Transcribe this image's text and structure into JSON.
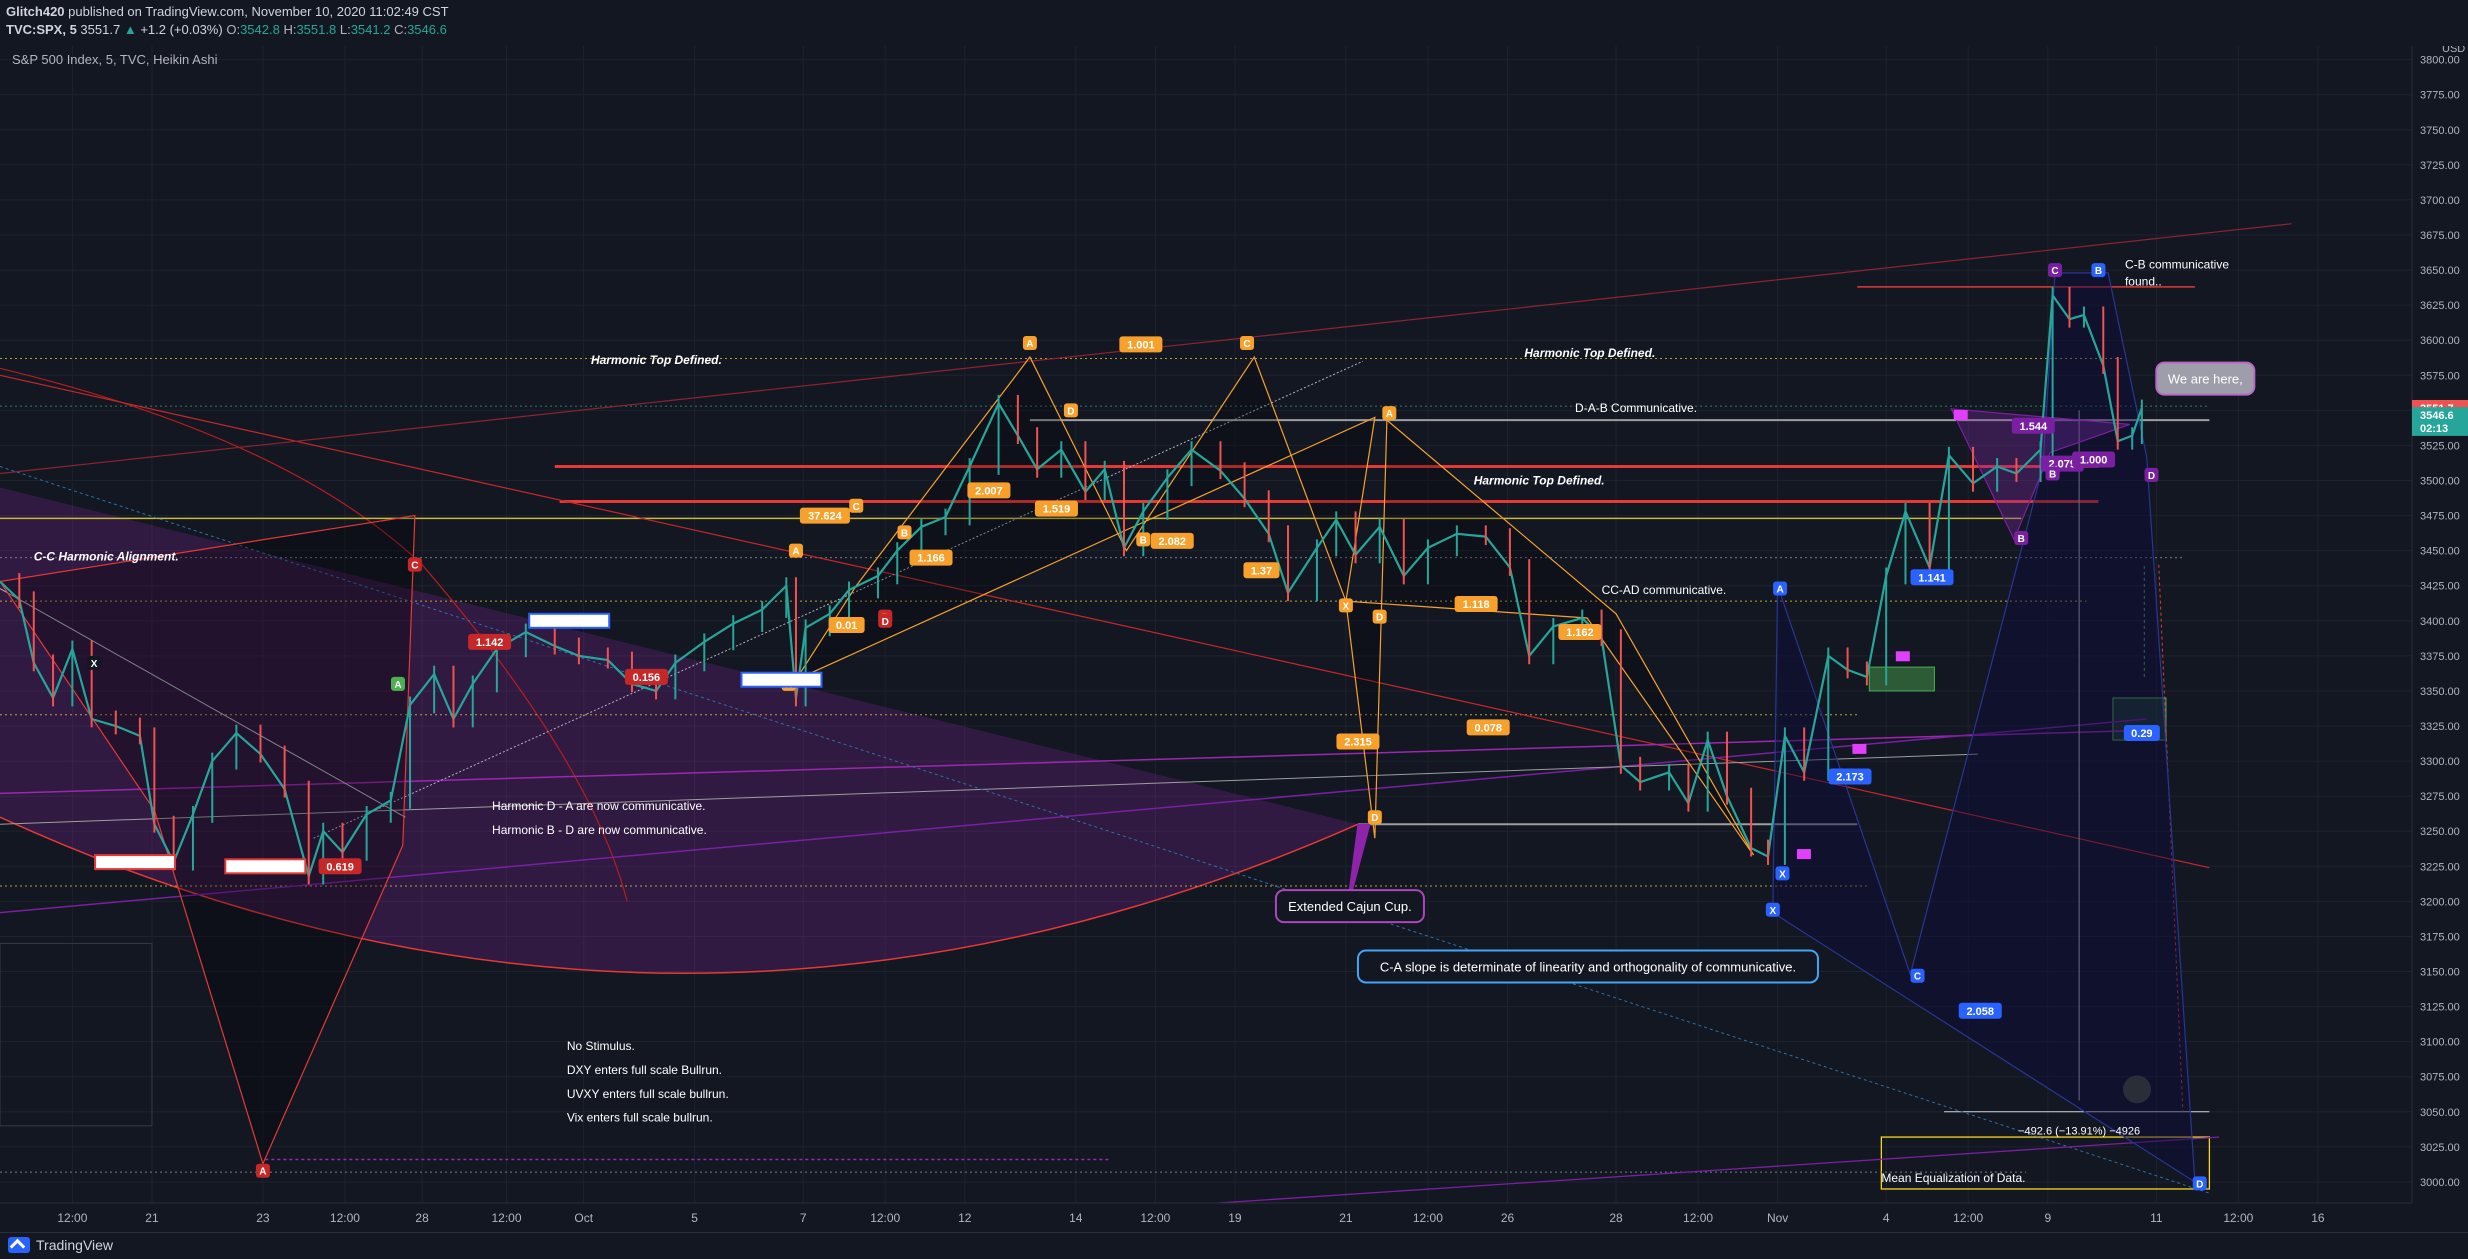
{
  "header": {
    "publisher": "Glitch420",
    "published_text": "published on TradingView.com, November 10, 2020 11:02:49 CST",
    "symbol": "TVC:SPX, 5",
    "last": "3551.7",
    "change_arrow": "▲",
    "change": "+1.2 (+0.03%)",
    "o_label": "O:",
    "o": "3542.8",
    "h_label": "H:",
    "h": "3551.8",
    "l_label": "L:",
    "l": "3541.2",
    "c_label": "C:",
    "c": "3546.6"
  },
  "chart_title": "S&P 500 Index, 5, TVC, Heikin Ashi",
  "footer": {
    "brand": "TradingView"
  },
  "colors": {
    "background": "#131722",
    "up": "#26a69a",
    "down": "#ef5350",
    "purple": "#9c27b0",
    "orange": "#f7a12c",
    "red_line": "#e53935",
    "blue_pattern": "#1e2f9e"
  },
  "chart_data": {
    "type": "line",
    "style": "Heikin Ashi candles, 5 min",
    "yaxis": {
      "unit": "USD",
      "ticks": [
        3800,
        3775,
        3750,
        3725,
        3700,
        3675,
        3650,
        3625,
        3600,
        3575,
        3550,
        3525,
        3500,
        3475,
        3450,
        3425,
        3400,
        3375,
        3350,
        3325,
        3300,
        3275,
        3250,
        3225,
        3200,
        3175,
        3150,
        3125,
        3100,
        3075,
        3050,
        3025,
        3000
      ],
      "tick_labels": [
        "3800.00",
        "3775.00",
        "3750.00",
        "3725.00",
        "3700.00",
        "3675.00",
        "3650.00",
        "3625.00",
        "3600.00",
        "3575.00",
        "3550.00",
        "3525.00",
        "3500.00",
        "3475.00",
        "3450.00",
        "3425.00",
        "3400.00",
        "3375.00",
        "3350.00",
        "3325.00",
        "3300.00",
        "3275.00",
        "3250.00",
        "3225.00",
        "3200.00",
        "3175.00",
        "3150.00",
        "3125.00",
        "3100.00",
        "3075.00",
        "3050.00",
        "3025.00",
        "3000.00"
      ],
      "range": [
        2985,
        3814
      ],
      "price_tags": [
        {
          "value": 3551.7,
          "label": "3551.7",
          "color": "#ef5350"
        },
        {
          "value": 3546.6,
          "label": "3546.6",
          "color": "#26a69a"
        },
        {
          "value": 3537.5,
          "label": "02:13",
          "color": "#26a69a"
        }
      ]
    },
    "xaxis": {
      "range": [
        0,
        1000
      ],
      "ticks": [
        {
          "x": 30,
          "label": "12:00"
        },
        {
          "x": 63,
          "label": "21"
        },
        {
          "x": 109,
          "label": "23"
        },
        {
          "x": 143,
          "label": "12:00"
        },
        {
          "x": 175,
          "label": "28"
        },
        {
          "x": 210,
          "label": "12:00"
        },
        {
          "x": 242,
          "label": "Oct"
        },
        {
          "x": 288,
          "label": "5"
        },
        {
          "x": 333,
          "label": "7"
        },
        {
          "x": 367,
          "label": "12:00"
        },
        {
          "x": 400,
          "label": "12"
        },
        {
          "x": 446,
          "label": "14"
        },
        {
          "x": 479,
          "label": "12:00"
        },
        {
          "x": 512,
          "label": "19"
        },
        {
          "x": 558,
          "label": "21"
        },
        {
          "x": 592,
          "label": "12:00"
        },
        {
          "x": 625,
          "label": "26"
        },
        {
          "x": 670,
          "label": "28"
        },
        {
          "x": 704,
          "label": "12:00"
        },
        {
          "x": 737,
          "label": "Nov"
        },
        {
          "x": 782,
          "label": "4"
        },
        {
          "x": 816,
          "label": "12:00"
        },
        {
          "x": 849,
          "label": "9"
        },
        {
          "x": 894,
          "label": "11"
        },
        {
          "x": 928,
          "label": "12:00"
        },
        {
          "x": 961,
          "label": "16"
        }
      ]
    },
    "price_path": [
      [
        0,
        3428
      ],
      [
        8,
        3415
      ],
      [
        14,
        3370
      ],
      [
        22,
        3345
      ],
      [
        30,
        3380
      ],
      [
        38,
        3330
      ],
      [
        48,
        3325
      ],
      [
        58,
        3318
      ],
      [
        64,
        3255
      ],
      [
        72,
        3228
      ],
      [
        80,
        3262
      ],
      [
        88,
        3300
      ],
      [
        98,
        3320
      ],
      [
        108,
        3305
      ],
      [
        118,
        3280
      ],
      [
        128,
        3218
      ],
      [
        134,
        3250
      ],
      [
        142,
        3235
      ],
      [
        152,
        3262
      ],
      [
        162,
        3272
      ],
      [
        170,
        3340
      ],
      [
        180,
        3362
      ],
      [
        188,
        3330
      ],
      [
        196,
        3355
      ],
      [
        206,
        3380
      ],
      [
        218,
        3392
      ],
      [
        230,
        3382
      ],
      [
        240,
        3375
      ],
      [
        252,
        3372
      ],
      [
        262,
        3355
      ],
      [
        272,
        3350
      ],
      [
        280,
        3370
      ],
      [
        292,
        3385
      ],
      [
        304,
        3398
      ],
      [
        316,
        3408
      ],
      [
        326,
        3425
      ],
      [
        330,
        3345
      ],
      [
        334,
        3395
      ],
      [
        344,
        3405
      ],
      [
        352,
        3422
      ],
      [
        364,
        3432
      ],
      [
        372,
        3450
      ],
      [
        382,
        3467
      ],
      [
        392,
        3474
      ],
      [
        402,
        3510
      ],
      [
        414,
        3555
      ],
      [
        422,
        3532
      ],
      [
        430,
        3508
      ],
      [
        440,
        3522
      ],
      [
        450,
        3492
      ],
      [
        458,
        3508
      ],
      [
        466,
        3452
      ],
      [
        474,
        3478
      ],
      [
        484,
        3502
      ],
      [
        494,
        3522
      ],
      [
        506,
        3507
      ],
      [
        516,
        3487
      ],
      [
        526,
        3462
      ],
      [
        534,
        3420
      ],
      [
        546,
        3452
      ],
      [
        554,
        3472
      ],
      [
        562,
        3447
      ],
      [
        572,
        3467
      ],
      [
        582,
        3432
      ],
      [
        592,
        3452
      ],
      [
        604,
        3462
      ],
      [
        616,
        3460
      ],
      [
        626,
        3438
      ],
      [
        634,
        3375
      ],
      [
        644,
        3396
      ],
      [
        656,
        3402
      ],
      [
        664,
        3388
      ],
      [
        672,
        3297
      ],
      [
        680,
        3285
      ],
      [
        692,
        3292
      ],
      [
        700,
        3270
      ],
      [
        708,
        3315
      ],
      [
        716,
        3275
      ],
      [
        726,
        3238
      ],
      [
        733,
        3232
      ],
      [
        740,
        3318
      ],
      [
        748,
        3292
      ],
      [
        758,
        3375
      ],
      [
        766,
        3365
      ],
      [
        774,
        3360
      ],
      [
        782,
        3432
      ],
      [
        790,
        3478
      ],
      [
        800,
        3438
      ],
      [
        808,
        3518
      ],
      [
        818,
        3498
      ],
      [
        828,
        3510
      ],
      [
        836,
        3505
      ],
      [
        846,
        3522
      ],
      [
        851,
        3632
      ],
      [
        858,
        3615
      ],
      [
        864,
        3618
      ],
      [
        872,
        3582
      ],
      [
        878,
        3528
      ],
      [
        884,
        3532
      ],
      [
        888,
        3551.7
      ]
    ],
    "annotations": [
      {
        "text": "Harmonic Top Defined."
      },
      {
        "text": "Harmonic Top Defined."
      },
      {
        "text": "Harmonic Top Defined."
      },
      {
        "text": "C-C Harmonic Alignment."
      },
      {
        "text": "D-A-B Communicative."
      },
      {
        "text": "CC-AD communicative."
      },
      {
        "text": "C-B communicative"
      },
      {
        "text": "found.."
      },
      {
        "text": "Harmonic D - A are now communicative."
      },
      {
        "text": "Harmonic B - D are now communicative."
      },
      {
        "text": "No Stimulus."
      },
      {
        "text": "DXY enters full scale Bullrun."
      },
      {
        "text": "UVXY enters full scale bullrun."
      },
      {
        "text": "Vix enters full scale bullrun."
      },
      {
        "text": "−492.6 (−13.91%) −4926"
      },
      {
        "text": "Mean Equalization of Data."
      }
    ],
    "callouts": [
      {
        "text": "We are here,"
      },
      {
        "text": "Extended Cajun Cup."
      },
      {
        "text": "C-A slope is determinate of linearity and orthogonality of communicative."
      }
    ],
    "ratio_labels": [
      {
        "text": "37.624"
      },
      {
        "text": "1.166"
      },
      {
        "text": "2.007"
      },
      {
        "text": "1.519"
      },
      {
        "text": "1.001"
      },
      {
        "text": "2.082"
      },
      {
        "text": "1.37"
      },
      {
        "text": "0.01"
      },
      {
        "text": "1.118"
      },
      {
        "text": "2.315"
      },
      {
        "text": "0.078"
      },
      {
        "text": "1.162"
      },
      {
        "text": "1.142"
      },
      {
        "text": "0.156"
      },
      {
        "text": "0.619"
      },
      {
        "text": "1.544"
      },
      {
        "text": "1.141"
      },
      {
        "text": "2.173"
      },
      {
        "text": "2.058"
      },
      {
        "text": "0.29"
      },
      {
        "text": "2.079"
      },
      {
        "text": "1.000"
      }
    ],
    "point_labels": [
      {
        "text": "A"
      },
      {
        "text": "D"
      },
      {
        "text": "C"
      },
      {
        "text": "C"
      },
      {
        "text": "B"
      },
      {
        "text": "D"
      },
      {
        "text": "A"
      },
      {
        "text": "X"
      },
      {
        "text": "D"
      },
      {
        "text": "B"
      },
      {
        "text": "X"
      },
      {
        "text": "D"
      },
      {
        "text": "C"
      },
      {
        "text": "A"
      },
      {
        "text": "D"
      },
      {
        "text": "X"
      },
      {
        "text": "A"
      },
      {
        "text": "B"
      },
      {
        "text": "C"
      },
      {
        "text": "X"
      },
      {
        "text": "A"
      },
      {
        "text": "C"
      },
      {
        "text": "B"
      },
      {
        "text": "D"
      },
      {
        "text": "B"
      },
      {
        "text": "X"
      },
      {
        "text": "D"
      },
      {
        "text": "A"
      }
    ]
  }
}
